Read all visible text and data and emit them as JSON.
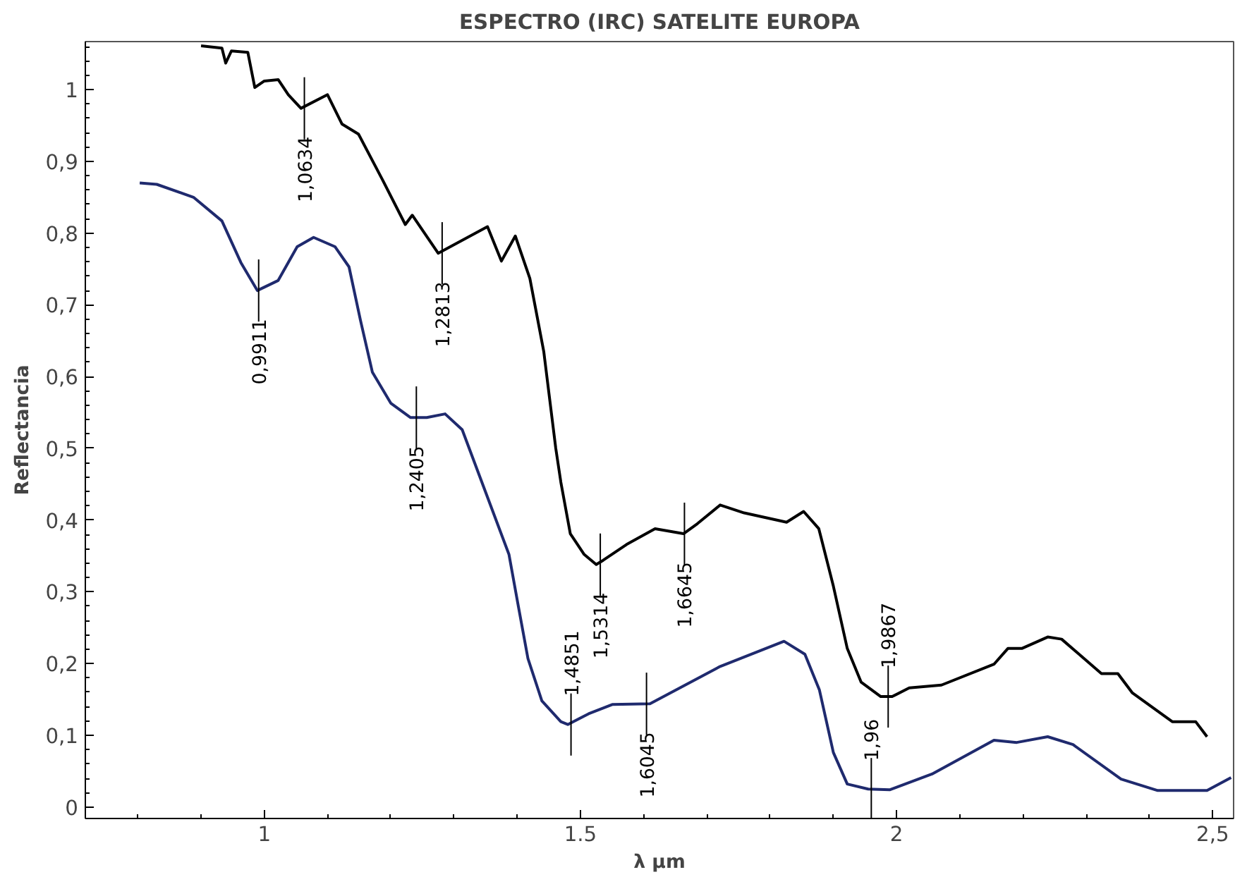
{
  "chart_data": {
    "type": "line",
    "title": "ESPECTRO (IRC) SATELITE EUROPA",
    "xlabel": "λ µm",
    "ylabel": "Reflectancia",
    "xlim": [
      0.717,
      2.533
    ],
    "ylim": [
      -0.016,
      1.067
    ],
    "xticks": [
      1,
      1.5,
      2,
      {
        "value": 2.5,
        "label": "2,5"
      }
    ],
    "yticks": [
      0,
      {
        "value": 0.1,
        "label": "0,1"
      },
      {
        "value": 0.2,
        "label": "0,2"
      },
      {
        "value": 0.3,
        "label": "0,3"
      },
      {
        "value": 0.4,
        "label": "0,4"
      },
      {
        "value": 0.5,
        "label": "0,5"
      },
      {
        "value": 0.6,
        "label": "0,6"
      },
      {
        "value": 0.7,
        "label": "0,7"
      },
      {
        "value": 0.8,
        "label": "0,8"
      },
      {
        "value": 0.9,
        "label": "0,9"
      },
      1
    ],
    "grid": false,
    "marker": "none",
    "line_style": "solid",
    "series": [
      {
        "color": "#000000",
        "x": [
          0.9,
          0.933,
          0.939,
          0.948,
          0.974,
          0.985,
          1.0,
          1.022,
          1.038,
          1.058,
          1.1,
          1.123,
          1.149,
          1.186,
          1.223,
          1.234,
          1.275,
          1.353,
          1.375,
          1.397,
          1.42,
          1.442,
          1.461,
          1.469,
          1.484,
          1.506,
          1.525,
          1.536,
          1.573,
          1.618,
          1.663,
          1.685,
          1.721,
          1.759,
          1.826,
          1.853,
          1.877,
          1.9,
          1.922,
          1.944,
          1.975,
          1.993,
          2.02,
          2.071,
          2.154,
          2.176,
          2.198,
          2.239,
          2.261,
          2.324,
          2.35,
          2.373,
          2.436,
          2.473,
          2.491
        ],
        "values": [
          1.061,
          1.058,
          1.037,
          1.054,
          1.052,
          1.003,
          1.012,
          1.014,
          0.993,
          0.974,
          0.993,
          0.952,
          0.938,
          0.876,
          0.812,
          0.825,
          0.772,
          0.809,
          0.761,
          0.796,
          0.737,
          0.635,
          0.5,
          0.453,
          0.381,
          0.352,
          0.338,
          0.344,
          0.366,
          0.388,
          0.381,
          0.395,
          0.421,
          0.41,
          0.397,
          0.412,
          0.388,
          0.308,
          0.221,
          0.174,
          0.154,
          0.154,
          0.166,
          0.17,
          0.199,
          0.221,
          0.221,
          0.237,
          0.234,
          0.186,
          0.186,
          0.159,
          0.119,
          0.119,
          0.098
        ]
      },
      {
        "color": "#1f2a6e",
        "x": [
          0.803,
          0.83,
          0.888,
          0.933,
          0.963,
          0.989,
          1.022,
          1.052,
          1.078,
          1.112,
          1.134,
          1.152,
          1.171,
          1.2,
          1.231,
          1.257,
          1.286,
          1.313,
          1.35,
          1.387,
          1.402,
          1.417,
          1.439,
          1.469,
          1.48,
          1.513,
          1.551,
          1.61,
          1.721,
          1.822,
          1.855,
          1.878,
          1.9,
          1.922,
          1.955,
          1.989,
          2.056,
          2.154,
          2.19,
          2.239,
          2.279,
          2.355,
          2.413,
          2.491,
          2.529
        ],
        "values": [
          0.87,
          0.868,
          0.85,
          0.817,
          0.759,
          0.72,
          0.734,
          0.781,
          0.794,
          0.781,
          0.753,
          0.679,
          0.606,
          0.563,
          0.543,
          0.543,
          0.548,
          0.526,
          0.439,
          0.352,
          0.279,
          0.207,
          0.148,
          0.119,
          0.115,
          0.13,
          0.143,
          0.144,
          0.196,
          0.231,
          0.213,
          0.163,
          0.076,
          0.032,
          0.025,
          0.024,
          0.046,
          0.093,
          0.09,
          0.098,
          0.087,
          0.039,
          0.023,
          0.023,
          0.041
        ]
      }
    ],
    "annotations": [
      {
        "text": "1,0634",
        "x": 1.0634,
        "y": 0.974
      },
      {
        "text": "1,2813",
        "x": 1.2813,
        "y": 0.772
      },
      {
        "text": "0,9911",
        "x": 0.9911,
        "y": 0.72
      },
      {
        "text": "1,2405",
        "x": 1.2405,
        "y": 0.543
      },
      {
        "text": "1,5314",
        "x": 1.5314,
        "y": 0.338
      },
      {
        "text": "1,6645",
        "x": 1.6645,
        "y": 0.381
      },
      {
        "text": "1,9867",
        "x": 1.9867,
        "y": 0.154
      },
      {
        "text": "1,4851",
        "x": 1.4851,
        "y": 0.115
      },
      {
        "text": "1,6045",
        "x": 1.6045,
        "y": 0.144
      },
      {
        "text": "1,96",
        "x": 1.96,
        "y": 0.025
      }
    ]
  }
}
